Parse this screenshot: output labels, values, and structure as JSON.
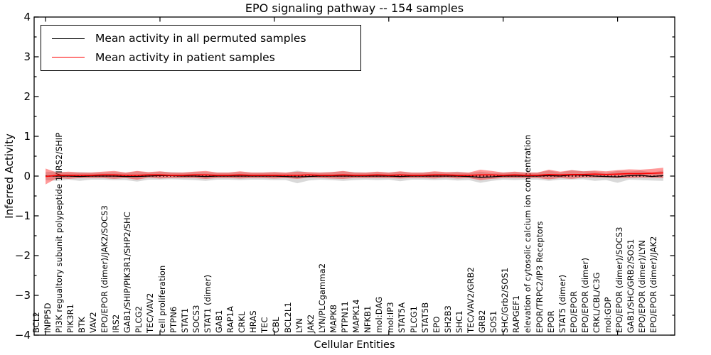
{
  "chart_data": {
    "type": "line",
    "title": "EPO signaling pathway -- 154 samples",
    "xlabel": "Cellular Entities",
    "ylabel": "Inferred Activity",
    "ylim": [
      -4,
      4
    ],
    "yticks": [
      4,
      3,
      2,
      1,
      0,
      -1,
      -2,
      -3,
      -4
    ],
    "ytick_labels": [
      "4",
      "3",
      "2",
      "1",
      "0",
      "−1",
      "−2",
      "−3",
      "−4"
    ],
    "minor_tick_step": 0.5,
    "xtick_major_indices": [
      0,
      10,
      20,
      30,
      40,
      50
    ],
    "grid": false,
    "legend_position": "upper left",
    "zero_line": {
      "y": 0,
      "color": "#000000",
      "style": "dotted"
    },
    "categories": [
      "BCL2",
      "INPP5D",
      "PI3K regualtory subunit polypeptide 1/IRS2/SHIP",
      "PIK3R1",
      "BTK",
      "VAV2",
      "EPO/EPOR (dimer)/JAK2/SOCS3",
      "IRS2",
      "GAB1/SHIP/PIK3R1/SHP2/SHC",
      "PLCG2",
      "TEC/VAV2",
      "cell proliferation",
      "PTPN6",
      "STAT1",
      "SOCS3",
      "STAT1 (dimer)",
      "GAB1",
      "RAP1A",
      "CRKL",
      "HRAS",
      "TEC",
      "CBL",
      "BCL2L1",
      "LYN",
      "JAK2",
      "LYN/PLCgamma2",
      "MAPK8",
      "PTPN11",
      "MAPK14",
      "NFKB1",
      "mol:DAG",
      "mol:IP3",
      "STAT5A",
      "PLCG1",
      "STAT5B",
      "EPO",
      "SH2B3",
      "SHC1",
      "TEC/VAV2/GRB2",
      "GRB2",
      "SOS1",
      "SHC/Grb2/SOS1",
      "RAPGEF1",
      "elevation of cytosolic calcium ion concentration",
      "EPOR/TRPC2/IP3 Receptors",
      "EPOR",
      "STAT5 (dimer)",
      "EPO/EPOR",
      "EPO/EPOR (dimer)",
      "CRKL/CBL/C3G",
      "mol:GDP",
      "EPO/EPOR (dimer)/SOCS3",
      "GAB1/SHC/GRB2/SOS1",
      "EPO/EPOR (dimer)/LYN",
      "EPO/EPOR (dimer)/JAK2"
    ],
    "series": [
      {
        "name": "Mean activity in all permuted samples",
        "color": "#000000",
        "band_color": "rgba(0,0,0,0.15)",
        "values": [
          0.0,
          0.0,
          0.0,
          -0.01,
          0.0,
          0.0,
          0.0,
          -0.01,
          -0.01,
          0.0,
          0.01,
          0.01,
          0.0,
          0.0,
          -0.01,
          0.0,
          0.0,
          0.0,
          0.0,
          0.0,
          0.0,
          -0.01,
          -0.02,
          -0.01,
          0.0,
          0.0,
          0.0,
          0.0,
          0.0,
          0.0,
          0.0,
          -0.01,
          0.0,
          0.0,
          0.0,
          0.0,
          0.0,
          -0.01,
          -0.03,
          -0.02,
          0.0,
          0.0,
          0.0,
          0.0,
          0.01,
          0.0,
          0.03,
          0.02,
          0.0,
          -0.01,
          -0.02,
          0.01,
          0.02,
          -0.01,
          0.01
        ],
        "std": [
          0.1,
          0.12,
          0.09,
          0.11,
          0.09,
          0.09,
          0.1,
          0.09,
          0.13,
          0.09,
          0.1,
          0.09,
          0.09,
          0.1,
          0.11,
          0.09,
          0.09,
          0.1,
          0.09,
          0.09,
          0.1,
          0.09,
          0.16,
          0.1,
          0.09,
          0.1,
          0.12,
          0.1,
          0.09,
          0.1,
          0.09,
          0.12,
          0.09,
          0.09,
          0.1,
          0.09,
          0.11,
          0.09,
          0.14,
          0.1,
          0.09,
          0.1,
          0.09,
          0.09,
          0.13,
          0.09,
          0.12,
          0.1,
          0.12,
          0.09,
          0.15,
          0.1,
          0.12,
          0.1,
          0.13
        ]
      },
      {
        "name": "Mean activity in patient samples",
        "color": "#ff0000",
        "band_color": "rgba(255,0,0,0.40)",
        "values": [
          -0.01,
          0.02,
          0.02,
          0.02,
          0.02,
          0.03,
          0.03,
          0.02,
          0.02,
          0.03,
          0.03,
          0.02,
          0.02,
          0.03,
          0.03,
          0.02,
          0.02,
          0.03,
          0.02,
          0.02,
          0.02,
          0.02,
          0.02,
          0.03,
          0.02,
          0.02,
          0.03,
          0.02,
          0.02,
          0.03,
          0.02,
          0.03,
          0.02,
          0.02,
          0.03,
          0.03,
          0.02,
          0.02,
          0.03,
          0.03,
          0.02,
          0.03,
          0.02,
          0.02,
          0.04,
          0.03,
          0.04,
          0.04,
          0.05,
          0.04,
          0.05,
          0.06,
          0.06,
          0.07,
          0.08
        ],
        "std": [
          0.2,
          0.07,
          0.09,
          0.07,
          0.07,
          0.08,
          0.1,
          0.07,
          0.11,
          0.07,
          0.09,
          0.07,
          0.07,
          0.08,
          0.1,
          0.07,
          0.07,
          0.09,
          0.07,
          0.07,
          0.08,
          0.07,
          0.09,
          0.07,
          0.07,
          0.08,
          0.1,
          0.07,
          0.07,
          0.08,
          0.07,
          0.09,
          0.07,
          0.07,
          0.09,
          0.07,
          0.08,
          0.07,
          0.13,
          0.1,
          0.07,
          0.08,
          0.07,
          0.07,
          0.12,
          0.08,
          0.11,
          0.08,
          0.09,
          0.08,
          0.1,
          0.11,
          0.1,
          0.11,
          0.13
        ]
      }
    ]
  }
}
